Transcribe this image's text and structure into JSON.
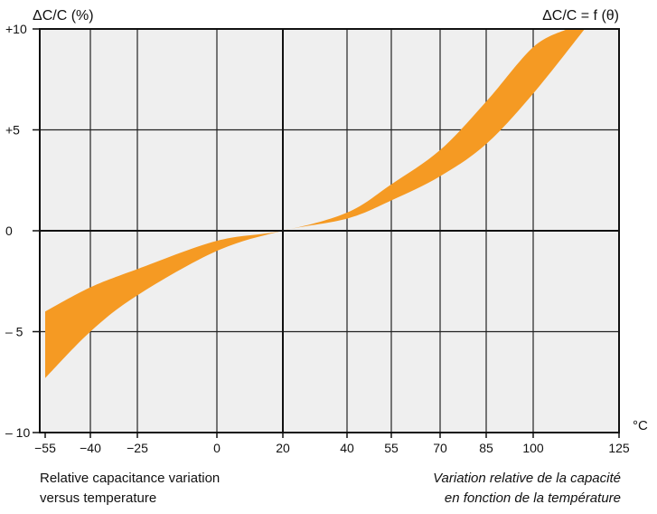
{
  "chart_data": {
    "type": "area",
    "title": "ΔC/C = f (θ)",
    "ylabel": "ΔC/C (%)",
    "xlabel": "°C",
    "xlim": [
      -55,
      125
    ],
    "ylim": [
      -10,
      10
    ],
    "x_tick_labels": [
      "−55",
      "−40",
      "−25",
      "0",
      "20",
      "40",
      "55",
      "70",
      "85",
      "100",
      "125"
    ],
    "x_tick_values": [
      -55,
      -40,
      -25,
      0,
      20,
      40,
      55,
      70,
      85,
      100,
      125
    ],
    "y_tick_labels": [
      "+10",
      "+5",
      "0",
      "– 5",
      "– 10"
    ],
    "y_tick_values": [
      10,
      5,
      0,
      -5,
      -10
    ],
    "grid": true,
    "band_color": "#f59a23",
    "plot_bg": "#efefef",
    "series": [
      {
        "x": [
          -55,
          -40,
          -25,
          0,
          20,
          40,
          55,
          70,
          85,
          100,
          110
        ],
        "values": [
          -4.0,
          -2.8,
          -1.9,
          -0.5,
          0,
          0.9,
          2.3,
          4.0,
          6.4,
          9.1,
          10.0
        ]
      },
      {
        "x": [
          -55,
          -40,
          -25,
          0,
          20,
          40,
          55,
          70,
          85,
          100,
          115
        ],
        "values": [
          -7.3,
          -5.0,
          -3.2,
          -1.0,
          0,
          0.6,
          1.5,
          2.7,
          4.3,
          6.8,
          10.0
        ]
      }
    ]
  },
  "captions": {
    "english_line1": "Relative capacitance variation",
    "english_line2": "versus temperature",
    "french_line1": "Variation relative de la capacité",
    "french_line2": "en fonction de la température"
  }
}
